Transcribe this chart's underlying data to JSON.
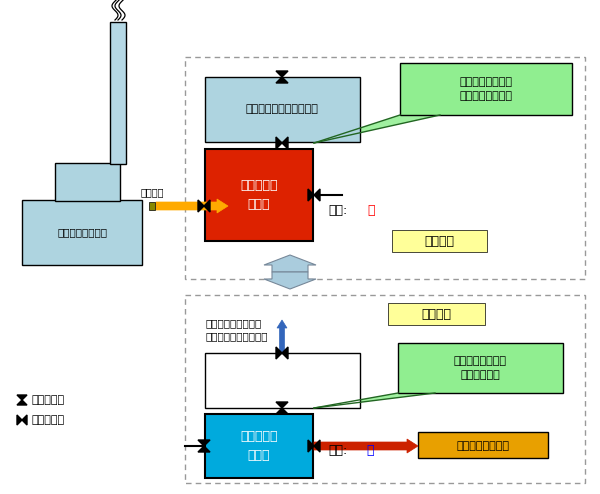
{
  "bg": "#ffffff",
  "light_blue": "#aed4e0",
  "chimney_blue": "#b5d8e5",
  "red": "#dd2200",
  "cyan": "#00aadd",
  "orange": "#e8a000",
  "green_callout": "#90ee90",
  "yellow_label": "#ffff99",
  "arrow_yellow": "#ffaa00",
  "arrow_red": "#cc2200",
  "arrow_blue_up": "#3366bb",
  "mid_arrow_color": "#aaccdd",
  "dashed_color": "#999999",
  "text_factory": "火力発電所や工場",
  "text_exhaust": "排出ガス",
  "text_no_co2_top": "二酸化炭素を除いた排気",
  "text_absorber": "二酸化炭素\n吸着材",
  "text_pressure_high": "圧力:",
  "text_high": "高",
  "text_pressure_low": "圧力:",
  "text_low": "低",
  "text_green_top": "圧力を上げて二酸\n化炭素のみを吸着",
  "text_green_bot": "圧力を下げて二酸\n化炭素を脱着",
  "text_adsorption": "吸着過程",
  "text_desorption": "脱着過程",
  "text_no_co2_bot": "二酸化炭素を除いた\n排気（煙突から排出）",
  "text_recover": "二酸化炭素を回収",
  "text_valve_closed": "：バルブ閉",
  "text_valve_open": "：バルブ開"
}
